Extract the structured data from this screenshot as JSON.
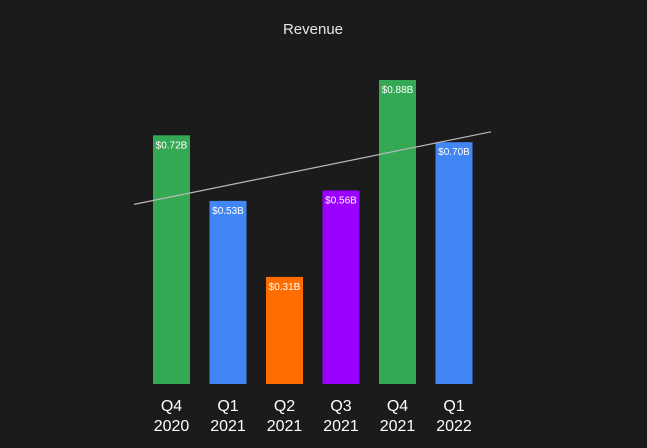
{
  "chart_data": {
    "type": "bar",
    "title": "Revenue",
    "categories": [
      [
        "Q4",
        "2020"
      ],
      [
        "Q1",
        "2021"
      ],
      [
        "Q2",
        "2021"
      ],
      [
        "Q3",
        "2021"
      ],
      [
        "Q4",
        "2021"
      ],
      [
        "Q1",
        "2022"
      ]
    ],
    "values": [
      0.72,
      0.53,
      0.31,
      0.56,
      0.88,
      0.7
    ],
    "data_labels": [
      "$0.72B",
      "$0.53B",
      "$0.31B",
      "$0.56B",
      "$0.88B",
      "$0.70B"
    ],
    "colors": [
      "#34a853",
      "#4285f4",
      "#ff6d00",
      "#9900ff",
      "#34a853",
      "#4285f4"
    ],
    "ylim": [
      0,
      0.88
    ],
    "trendline": {
      "start": 0.52,
      "end": 0.73
    },
    "grid": false,
    "legend": "none",
    "xlabel": "",
    "ylabel": ""
  }
}
